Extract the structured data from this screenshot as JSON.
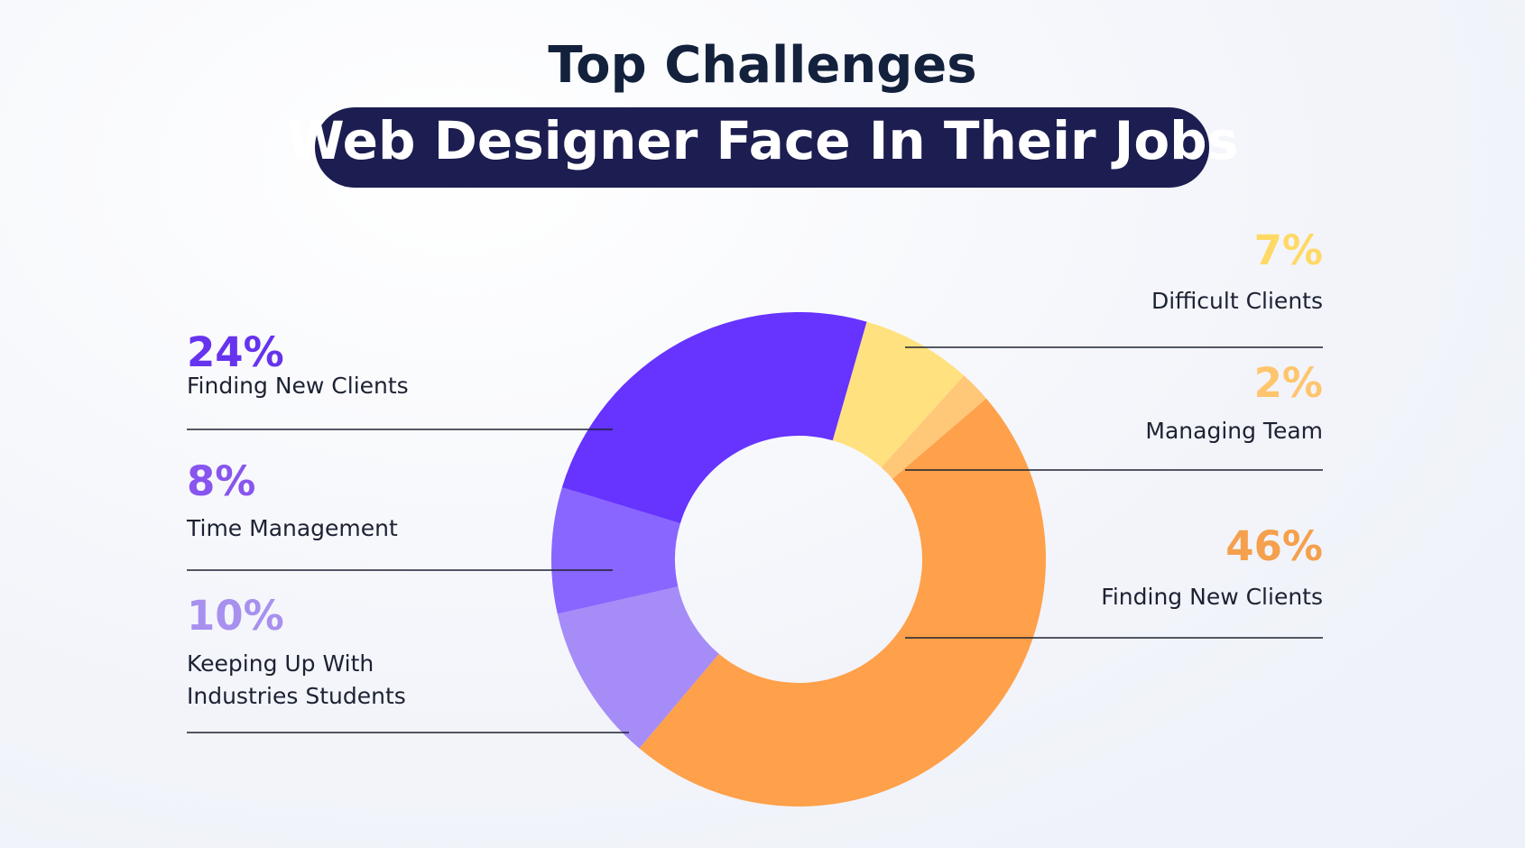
{
  "chart_data": {
    "type": "donut",
    "title": "Top Challenges",
    "subtitle": "Web Designer Face In Their Jobs",
    "categories": [
      "Difficult Clients",
      "Managing Team",
      "Finding New Clients",
      "Keeping Up With Industries Students",
      "Time Management",
      "Finding New Clients"
    ],
    "values": [
      7,
      2,
      46,
      10,
      8,
      24
    ],
    "value_labels": [
      "7%",
      "2%",
      "46%",
      "10%",
      "8%",
      "24%"
    ],
    "colors": [
      "#ffe17f",
      "#ffc878",
      "#ffa04a",
      "#a58cf7",
      "#8866ff",
      "#6633ff"
    ],
    "label_colors": [
      "#ffd966",
      "#ffc56e",
      "#f5a04c",
      "#a890ee",
      "#8855ee",
      "#6633ee"
    ]
  }
}
